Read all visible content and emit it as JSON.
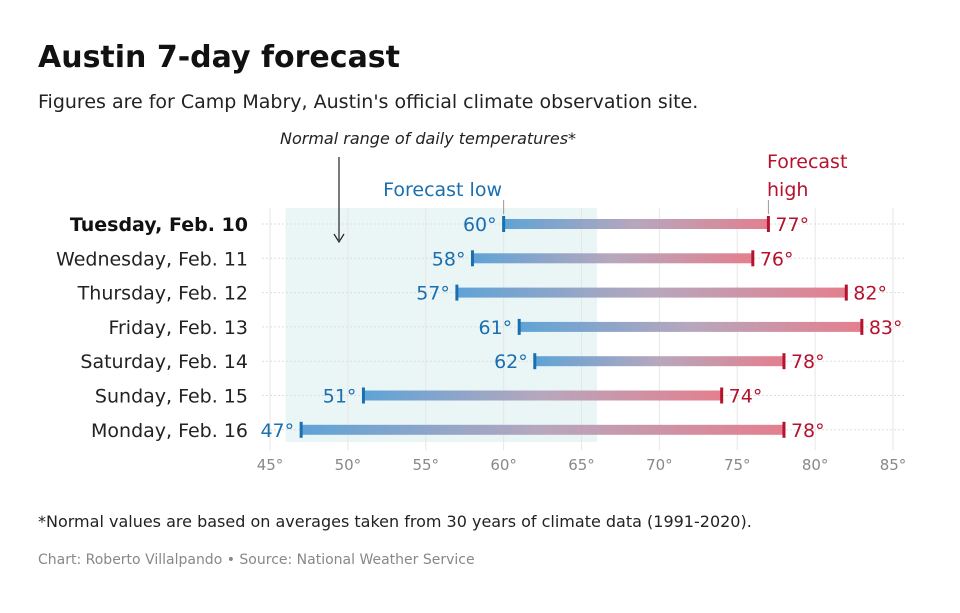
{
  "title": "Austin 7-day forecast",
  "subtitle": "Figures are for Camp Mabry, Austin's official climate observation site.",
  "footnote": "*Normal values are based on averages taken from 30 years of climate data (1991-2020).",
  "credit": "Chart: Roberto Villalpando • Source: National Weather Service",
  "chart_data": {
    "type": "range-bar",
    "annotations": {
      "normal_range": "Normal range of daily temperatures*",
      "low_label": "Forecast low",
      "high_label_1": "Forecast",
      "high_label_2": "high"
    },
    "normal_range": [
      46,
      66
    ],
    "xlim": [
      45,
      85
    ],
    "ticks": [
      45,
      50,
      55,
      60,
      65,
      70,
      75,
      80,
      85
    ],
    "tick_labels": [
      "45°",
      "50°",
      "55°",
      "60°",
      "65°",
      "70°",
      "75°",
      "80°",
      "85°"
    ],
    "grid": true,
    "colors": {
      "low": "#1a6fb0",
      "high": "#b5122e",
      "normal_band": "#eaf5f6"
    },
    "days": [
      {
        "label": "Tuesday, Feb. 10",
        "low": 60,
        "high": 77,
        "low_label": "60°",
        "high_label": "77°",
        "bold": true
      },
      {
        "label": "Wednesday, Feb. 11",
        "low": 58,
        "high": 76,
        "low_label": "58°",
        "high_label": "76°"
      },
      {
        "label": "Thursday, Feb. 12",
        "low": 57,
        "high": 82,
        "low_label": "57°",
        "high_label": "82°"
      },
      {
        "label": "Friday, Feb. 13",
        "low": 61,
        "high": 83,
        "low_label": "61°",
        "high_label": "83°"
      },
      {
        "label": "Saturday, Feb. 14",
        "low": 62,
        "high": 78,
        "low_label": "62°",
        "high_label": "78°"
      },
      {
        "label": "Sunday, Feb. 15",
        "low": 51,
        "high": 74,
        "low_label": "51°",
        "high_label": "74°"
      },
      {
        "label": "Monday, Feb. 16",
        "low": 47,
        "high": 78,
        "low_label": "47°",
        "high_label": "78°"
      }
    ]
  }
}
